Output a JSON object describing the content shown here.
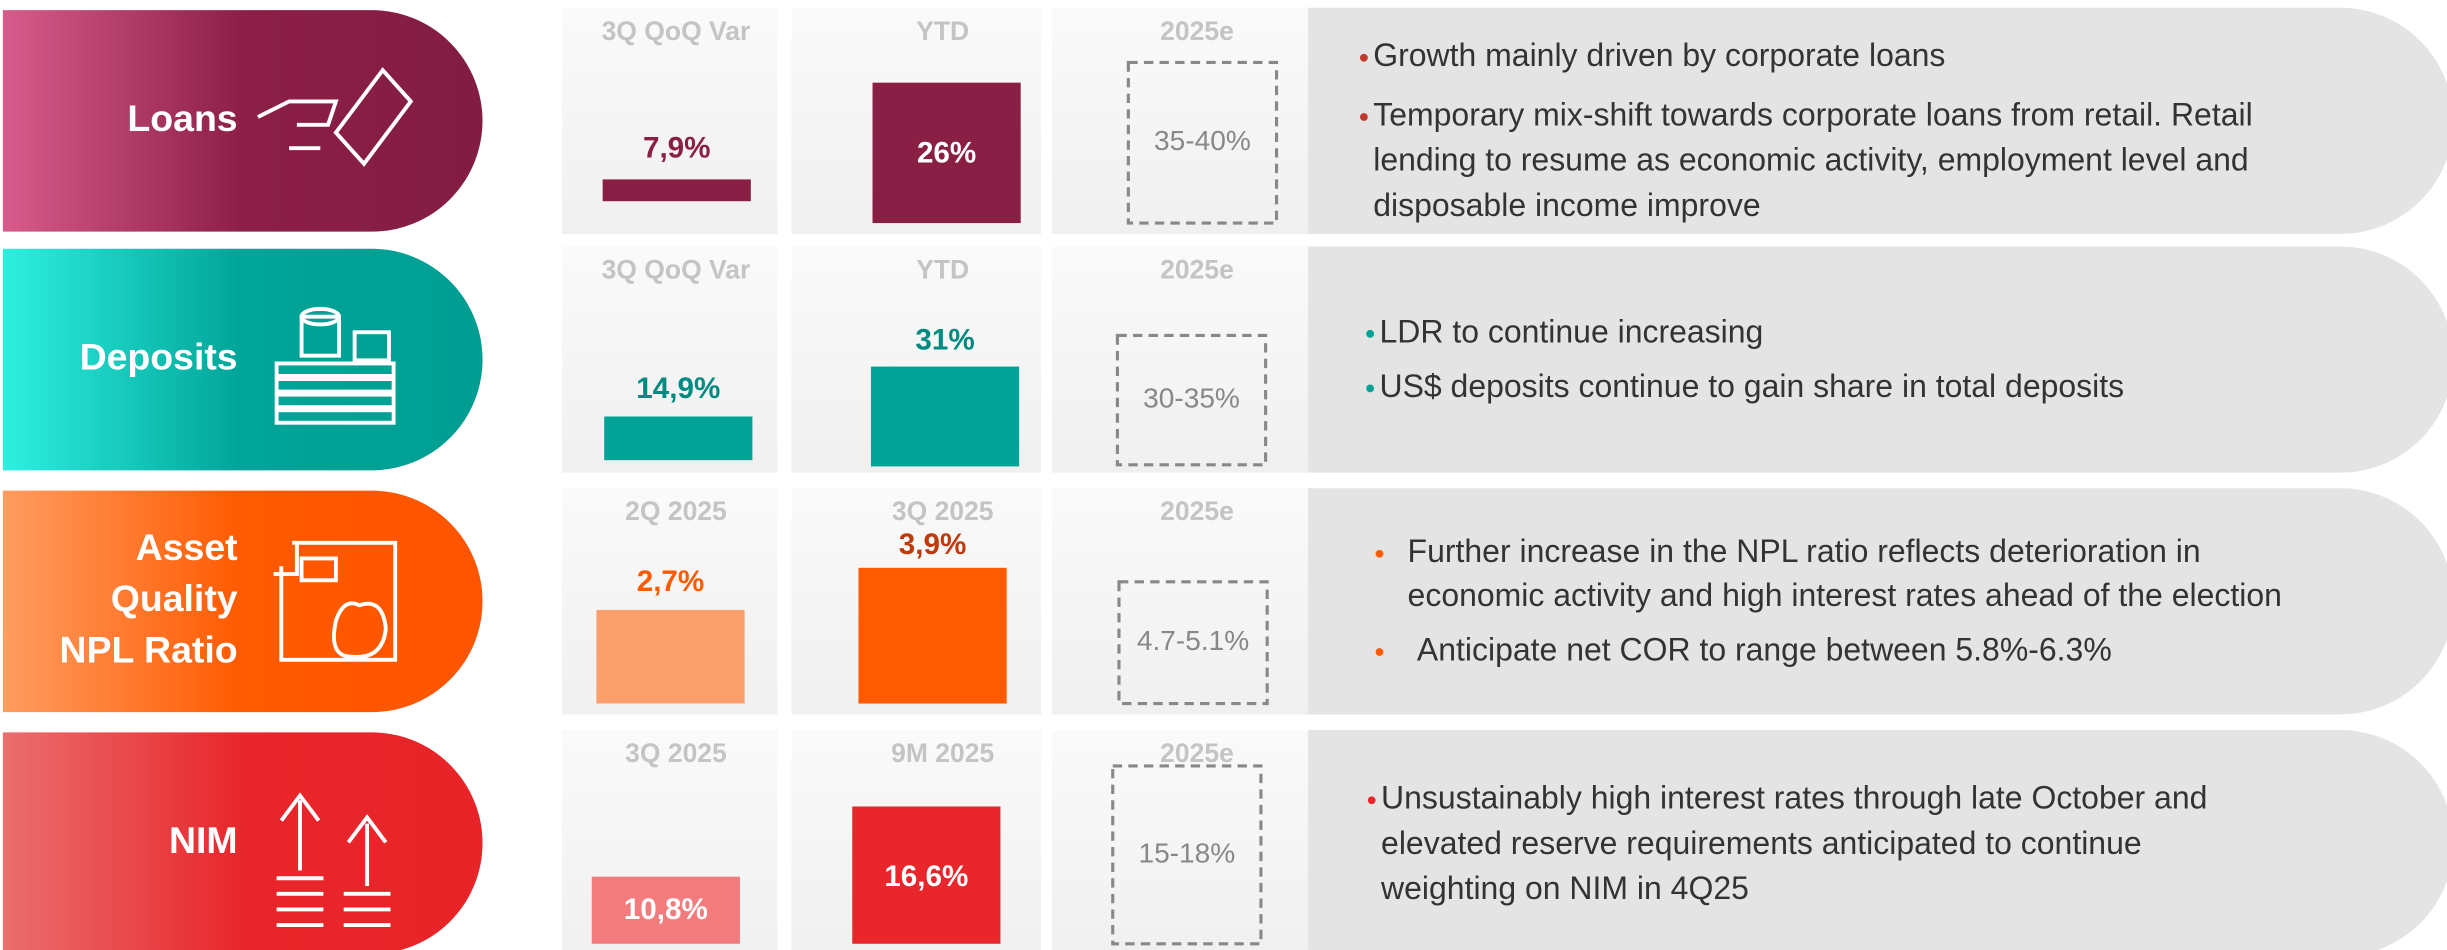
{
  "rows": [
    {
      "label": [
        "Loans"
      ],
      "columns": [
        {
          "header": "3Q QoQ Var",
          "value": "7,9%"
        },
        {
          "header": "YTD",
          "value": "26%"
        },
        {
          "header": "2025e",
          "value": "35-40%"
        }
      ],
      "bullets": [
        [
          "Growth mainly driven by corporate loans"
        ],
        [
          "Temporary mix-shift towards corporate loans from retail. Retail",
          "lending to resume as economic activity, employment level and",
          "disposable income improve"
        ]
      ]
    },
    {
      "label": [
        "Deposits"
      ],
      "columns": [
        {
          "header": "3Q QoQ Var",
          "value": "14,9%"
        },
        {
          "header": "YTD",
          "value": "31%"
        },
        {
          "header": "2025e",
          "value": "30-35%"
        }
      ],
      "bullets": [
        [
          "LDR to continue increasing"
        ],
        [
          "US$ deposits continue to gain share in total deposits"
        ]
      ]
    },
    {
      "label": [
        "Asset",
        "Quality",
        "NPL Ratio"
      ],
      "columns": [
        {
          "header": "2Q 2025",
          "value": "2,7%"
        },
        {
          "header": "3Q 2025",
          "value": "3,9%"
        },
        {
          "header": "2025e",
          "value": "4.7-5.1%"
        }
      ],
      "bullets": [
        [
          "Further increase in the NPL ratio reflects deterioration in",
          "economic activity and high interest rates ahead of the election"
        ],
        [
          "Anticipate net COR to range between 5.8%-6.3%"
        ]
      ]
    },
    {
      "label": [
        "NIM"
      ],
      "columns": [
        {
          "header": "3Q 2025",
          "value": "10,8%"
        },
        {
          "header": "9M 2025",
          "value": "16,6%"
        },
        {
          "header": "2025e",
          "value": "15-18%"
        }
      ],
      "bullets": [
        [
          "Unsustainably high interest rates through late October and",
          "elevated reserve requirements anticipated to continue",
          "weighting on NIM in 4Q25"
        ]
      ]
    }
  ]
}
